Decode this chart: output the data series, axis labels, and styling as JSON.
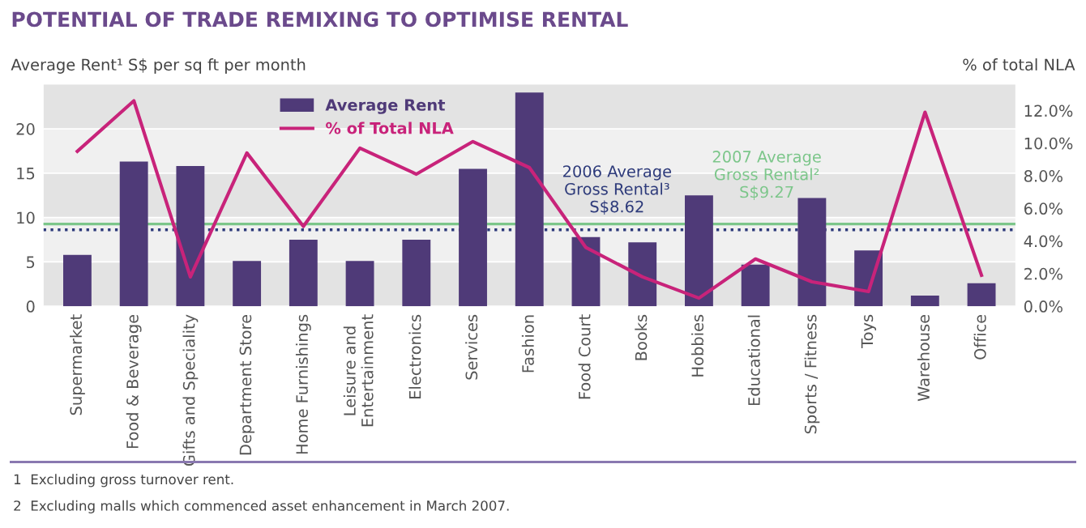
{
  "chart_data": {
    "type": "bar",
    "title": "POTENTIAL OF TRADE REMIXING TO OPTIMISE RENTAL",
    "ylabel": "Average Rent¹ S$ per sq ft per month",
    "y2label": "% of total NLA",
    "categories": [
      "Supermarket",
      "Food & Beverage",
      "Gifts and Speciality",
      "Department Store",
      "Home Furnishings",
      "Leisure and\nEntertainment",
      "Electronics",
      "Services",
      "Fashion",
      "Food Court",
      "Books",
      "Hobbies",
      "Educational",
      "Sports / Fitness",
      "Toys",
      "Warehouse",
      "Office"
    ],
    "series": [
      {
        "name": "Average Rent",
        "color": "#4f3a78",
        "values": [
          5.8,
          16.3,
          15.8,
          5.1,
          7.5,
          5.1,
          7.5,
          15.5,
          24.1,
          7.8,
          7.2,
          12.5,
          4.7,
          12.2,
          6.3,
          1.2,
          2.6
        ]
      },
      {
        "name": "% of Total NLA",
        "type": "line",
        "axis": "y2",
        "color": "#c8237a",
        "values": [
          9.5,
          12.6,
          1.8,
          9.4,
          4.9,
          9.7,
          8.1,
          10.1,
          8.5,
          3.6,
          1.8,
          0.5,
          2.9,
          1.5,
          0.9,
          11.9,
          1.9
        ]
      }
    ],
    "ylim": [
      0,
      25
    ],
    "yticks": [
      0,
      5,
      10,
      15,
      20
    ],
    "y2lim": [
      0,
      13.6
    ],
    "y2ticks": [
      {
        "value": 0,
        "label": "0.0%"
      },
      {
        "value": 2,
        "label": "2.0%"
      },
      {
        "value": 4,
        "label": "4.0%"
      },
      {
        "value": 6,
        "label": "6.0%"
      },
      {
        "value": 8,
        "label": "8.0%"
      },
      {
        "value": 10,
        "label": "10.0%"
      },
      {
        "value": 12,
        "label": "12.0%"
      }
    ],
    "ref_lines": [
      {
        "axis": "y",
        "value": 8.62,
        "label": "2006 Average\nGross Rental³\nS$8.62",
        "color": "#2d3a7a",
        "line_style": "dotted"
      },
      {
        "axis": "y",
        "value": 9.27,
        "label": "2007 Average\nGross Rental²\nS$9.27",
        "color": "#7cc68a",
        "line_style": "solid"
      }
    ],
    "grid": "y",
    "legend": "top left",
    "marker": "none",
    "line_style": "solid",
    "annotations": [
      "1  Excluding gross turnover rent.",
      "2  Excluding malls which commenced asset enhancement in March 2007."
    ]
  }
}
